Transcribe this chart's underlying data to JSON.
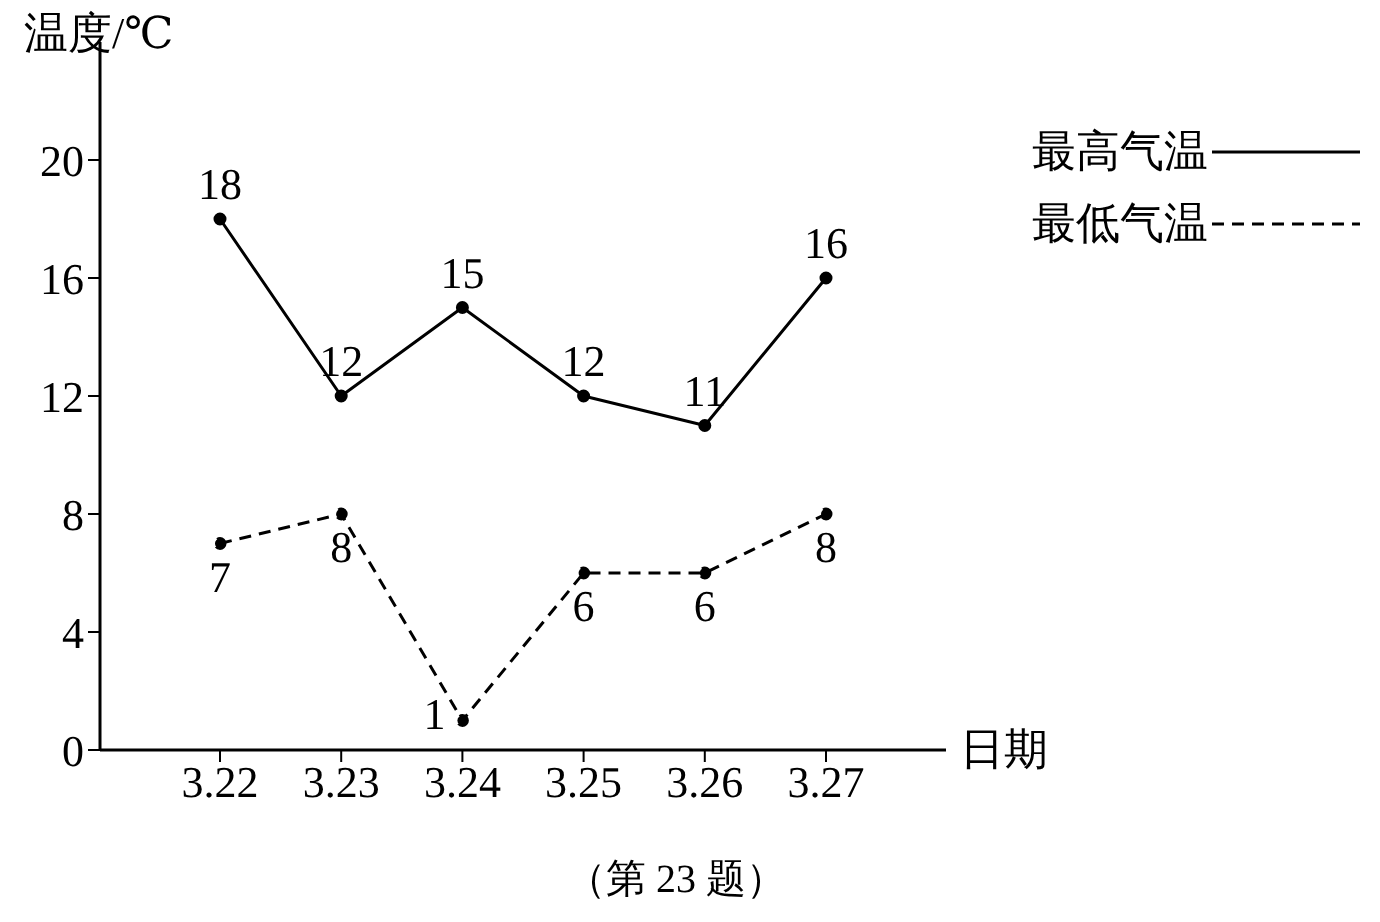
{
  "chart_data": {
    "type": "line",
    "ylabel": "温度/℃",
    "xlabel": "日期",
    "annotations": [
      "（第 23 题）"
    ],
    "categories": [
      "3.22",
      "3.23",
      "3.24",
      "3.25",
      "3.26",
      "3.27"
    ],
    "series": [
      {
        "name": "最高气温",
        "color": "#000000",
        "values": [
          18,
          12,
          15,
          12,
          11,
          16
        ],
        "line_style": "solid"
      },
      {
        "name": "最低气温",
        "color": "#000000",
        "values": [
          7,
          8,
          1,
          6,
          6,
          8
        ],
        "line_style": "dashed"
      }
    ],
    "ylim": [
      0,
      24
    ],
    "yticks": [
      0,
      4,
      8,
      12,
      16,
      20
    ],
    "grid": false,
    "legend": "top right",
    "marker": "circle",
    "data_labels": true
  }
}
